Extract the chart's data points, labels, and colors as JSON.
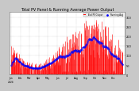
{
  "title": "Total PV Panel & Running Average Power Output",
  "background_color": "#c8c8c8",
  "plot_bg_color": "#ffffff",
  "grid_color": "#aaaaaa",
  "bar_color": "#ff0000",
  "avg_color": "#0000ff",
  "ylim": [
    0,
    330
  ],
  "yticks": [
    0,
    50,
    100,
    150,
    200,
    250,
    300
  ],
  "ytick_labels": [
    "0",
    "50",
    "100",
    "150",
    "200",
    "250",
    "300"
  ],
  "num_days": 365,
  "legend_labels": [
    "Total PV Output",
    "Running Avg"
  ],
  "legend_colors": [
    "#ff0000",
    "#0000ff"
  ],
  "title_fontsize": 3.5,
  "tick_fontsize": 2.5
}
